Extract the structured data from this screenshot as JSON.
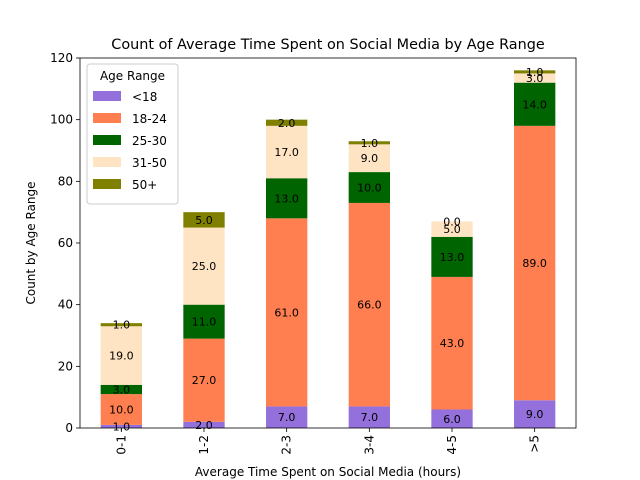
{
  "chart_data": {
    "type": "bar",
    "stacked": true,
    "title": "Count of Average Time Spent on Social Media by Age Range",
    "xlabel": "Average Time Spent on Social Media (hours)",
    "ylabel": "Count by Age Range",
    "categories": [
      "0-1",
      "1-2",
      "2-3",
      "3-4",
      "4-5",
      ">5"
    ],
    "ylim": [
      0,
      120
    ],
    "yticks": [
      0,
      20,
      40,
      60,
      80,
      100,
      120
    ],
    "grid": false,
    "legend": {
      "title": "Age Range",
      "placement": "top-left"
    },
    "series": [
      {
        "name": "<18",
        "color": "#9370db",
        "values": [
          1,
          2,
          7,
          7,
          6,
          9
        ]
      },
      {
        "name": "18-24",
        "color": "#ff7f50",
        "values": [
          10,
          27,
          61,
          66,
          43,
          89
        ]
      },
      {
        "name": "25-30",
        "color": "#006400",
        "values": [
          3,
          11,
          13,
          10,
          13,
          14
        ]
      },
      {
        "name": "31-50",
        "color": "#ffe4c4",
        "values": [
          19,
          25,
          17,
          9,
          5,
          3
        ]
      },
      {
        "name": "50+",
        "color": "#808000",
        "values": [
          1,
          5,
          2,
          1,
          0,
          1
        ]
      }
    ]
  }
}
